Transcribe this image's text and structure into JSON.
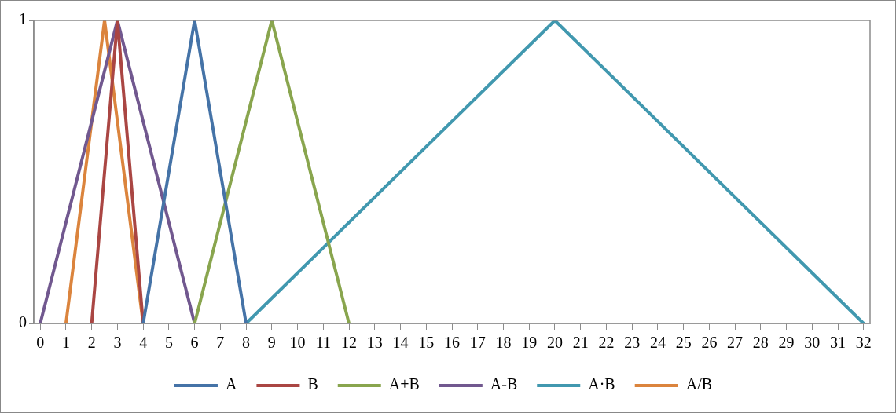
{
  "chart_data": {
    "type": "line",
    "xlim": [
      -0.25,
      32.25
    ],
    "xticks": [
      0,
      1,
      2,
      3,
      4,
      5,
      6,
      7,
      8,
      9,
      10,
      11,
      12,
      13,
      14,
      15,
      16,
      17,
      18,
      19,
      20,
      21,
      22,
      23,
      24,
      25,
      26,
      27,
      28,
      29,
      30,
      31,
      32
    ],
    "ylim": [
      0,
      1
    ],
    "yticks": [
      0,
      1
    ],
    "grid": false,
    "legend": "bottom",
    "marker": "none",
    "line_style": "solid",
    "series": [
      {
        "name": "A",
        "color": "#4573a7",
        "x": [
          4,
          6,
          8
        ],
        "values": [
          0,
          1,
          0
        ]
      },
      {
        "name": "B",
        "color": "#aa4643",
        "x": [
          2,
          3,
          4
        ],
        "values": [
          0,
          1,
          0
        ]
      },
      {
        "name": "A+B",
        "color": "#89a54e",
        "x": [
          6,
          9,
          12
        ],
        "values": [
          0,
          1,
          0
        ]
      },
      {
        "name": "A-B",
        "color": "#71588f",
        "x": [
          0,
          3,
          6
        ],
        "values": [
          0,
          1,
          0
        ]
      },
      {
        "name": "A·B",
        "color": "#4198af",
        "x": [
          8,
          20,
          32
        ],
        "values": [
          0,
          1,
          0
        ]
      },
      {
        "name": "A/B",
        "color": "#db843d",
        "x": [
          1,
          2.5,
          4
        ],
        "values": [
          0,
          1,
          0
        ]
      }
    ]
  }
}
